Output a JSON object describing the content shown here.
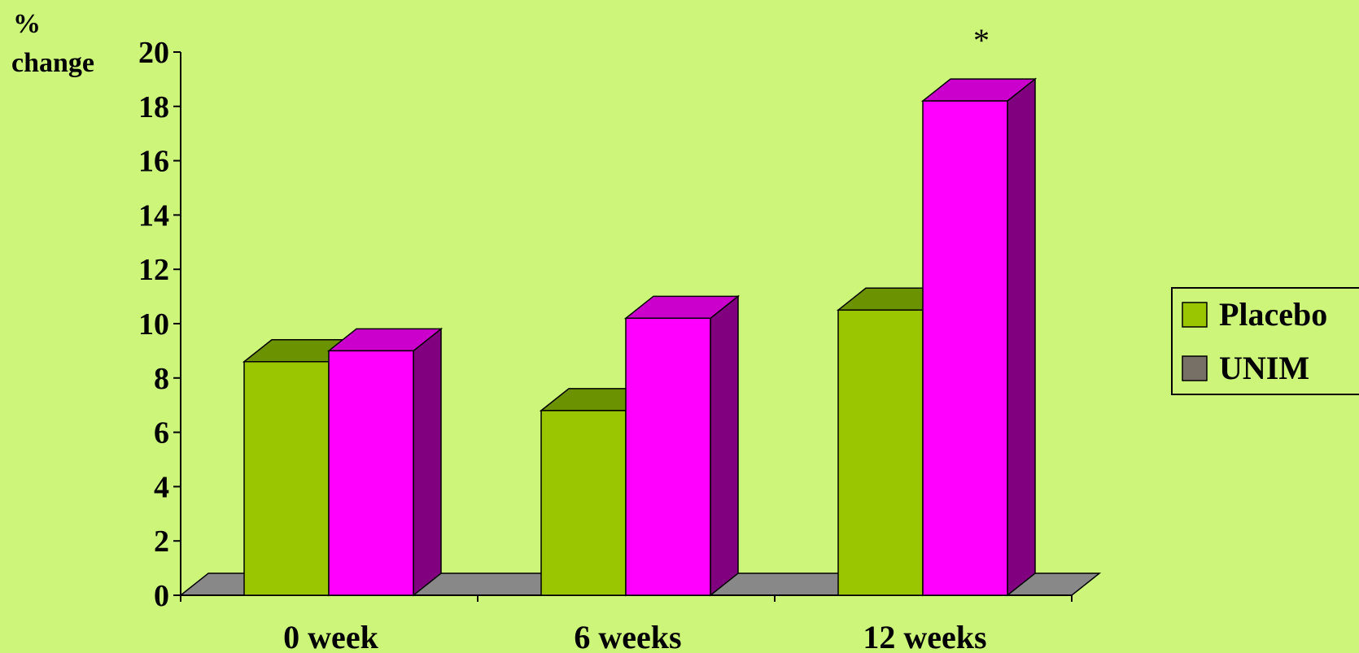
{
  "chart_data": {
    "type": "bar",
    "three_d": true,
    "ylabel_line1": "%",
    "ylabel_line2": "change",
    "categories": [
      "0 week",
      "6 weeks",
      "12 weeks"
    ],
    "series": [
      {
        "name": "Placebo",
        "values": [
          8.6,
          6.8,
          10.5
        ],
        "color": "#99c600",
        "top_color": "#6b9200"
      },
      {
        "name": "UNIM",
        "values": [
          9.0,
          10.2,
          18.2
        ],
        "color": "#ff00ff",
        "top_color": "#cc00cc",
        "side_color": "#800080"
      }
    ],
    "ylim": [
      0,
      20
    ],
    "yticks": [
      0,
      2,
      4,
      6,
      8,
      10,
      12,
      14,
      16,
      18,
      20
    ],
    "legend": {
      "position": "right",
      "items": [
        {
          "label": "Placebo",
          "swatch_color": "#99c600"
        },
        {
          "label": "UNIM",
          "swatch_color": "#777066"
        }
      ]
    },
    "annotations": [
      {
        "text": "*",
        "category_index": 2,
        "series_index": 1
      }
    ],
    "floor_color": "#888888",
    "background_color": "#ccf57a",
    "grid": false
  }
}
